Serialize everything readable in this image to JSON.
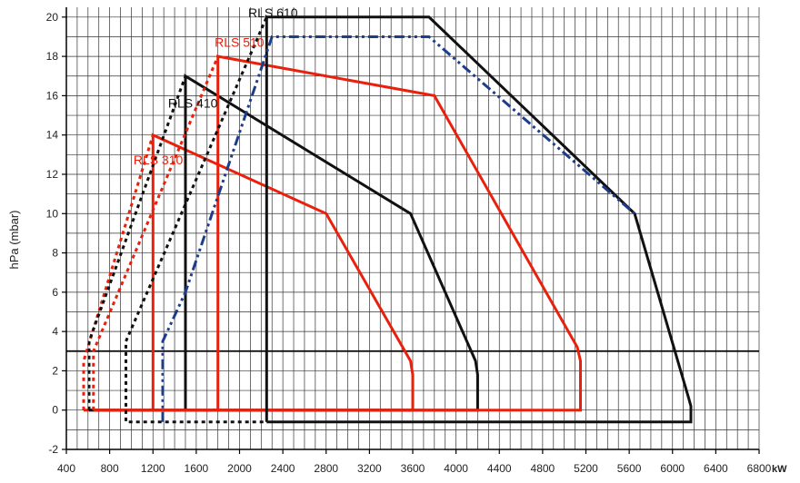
{
  "chart_data": {
    "type": "line",
    "title": "",
    "xlabel": "",
    "x_unit": "kW",
    "ylabel": "hPa (mbar)",
    "xlim": [
      400,
      6800
    ],
    "ylim": [
      -2,
      20.5
    ],
    "x_ticks": [
      400,
      800,
      1200,
      1600,
      2000,
      2400,
      2800,
      3200,
      3600,
      4000,
      4400,
      4800,
      5200,
      5600,
      6000,
      6400,
      6800
    ],
    "x_tick_labels": [
      "400",
      "800",
      "1200",
      "1600",
      "2000",
      "2400",
      "2800",
      "3200",
      "3600",
      "4000",
      "4400",
      "4800",
      "5200",
      "5600",
      "6000",
      "6400",
      "6800"
    ],
    "y_ticks": [
      -2,
      0,
      2,
      4,
      6,
      8,
      10,
      12,
      14,
      16,
      18,
      20
    ],
    "y_tick_labels": [
      "-2",
      "0",
      "2",
      "4",
      "6",
      "8",
      "10",
      "12",
      "14",
      "16",
      "18",
      "20"
    ],
    "grid": true,
    "major_grid_y": [
      3
    ],
    "colors": {
      "red": "#e8200c",
      "black": "#111111",
      "blue": "#1c3c8c",
      "grid": "#333333",
      "background": "#ffffff"
    },
    "series": [
      {
        "name": "RLS 310",
        "color": "#e8200c",
        "dash": "solid",
        "width": 3,
        "points": [
          [
            1200,
            0
          ],
          [
            1200,
            14
          ],
          [
            2800,
            10
          ],
          [
            3580,
            2.5
          ],
          [
            3600,
            1.8
          ],
          [
            3600,
            0
          ],
          [
            560,
            0
          ]
        ]
      },
      {
        "name": "",
        "color": "#e8200c",
        "dash": "dotted",
        "width": 3,
        "points": [
          [
            560,
            0
          ],
          [
            560,
            2.5
          ],
          [
            1200,
            14
          ]
        ]
      },
      {
        "name": "RLS 410",
        "color": "#111111",
        "dash": "solid",
        "width": 3,
        "points": [
          [
            1500,
            0
          ],
          [
            1500,
            17
          ],
          [
            3580,
            10
          ],
          [
            4180,
            2.5
          ],
          [
            4200,
            1.8
          ],
          [
            4200,
            0
          ],
          [
            610,
            0
          ]
        ]
      },
      {
        "name": "",
        "color": "#111111",
        "dash": "dotted",
        "width": 3,
        "points": [
          [
            610,
            0
          ],
          [
            610,
            3.5
          ],
          [
            1500,
            17
          ]
        ]
      },
      {
        "name": "RLS 510",
        "color": "#e8200c",
        "dash": "solid",
        "width": 3,
        "points": [
          [
            1800,
            0
          ],
          [
            1800,
            18
          ],
          [
            3800,
            16
          ],
          [
            5120,
            3.2
          ],
          [
            5150,
            2.5
          ],
          [
            5150,
            0
          ],
          [
            650,
            0
          ]
        ]
      },
      {
        "name": "",
        "color": "#e8200c",
        "dash": "dotted",
        "width": 3,
        "points": [
          [
            650,
            0
          ],
          [
            650,
            3
          ],
          [
            1800,
            18
          ]
        ]
      },
      {
        "name": "RLS 610",
        "color": "#111111",
        "dash": "solid",
        "width": 3,
        "points": [
          [
            2250,
            -0.6
          ],
          [
            2250,
            20
          ],
          [
            3750,
            20
          ],
          [
            5650,
            10
          ],
          [
            6150,
            0.6
          ],
          [
            6170,
            0.2
          ],
          [
            6170,
            -0.6
          ],
          [
            2250,
            -0.6
          ]
        ]
      },
      {
        "name": "",
        "color": "#111111",
        "dash": "dotted",
        "width": 3,
        "points": [
          [
            2220,
            -0.6
          ],
          [
            950,
            -0.6
          ],
          [
            950,
            3.5
          ],
          [
            2250,
            20
          ]
        ]
      },
      {
        "name": "",
        "color": "#1c3c8c",
        "dash": "dashdot",
        "width": 3,
        "points": [
          [
            1290,
            -0.6
          ],
          [
            1290,
            3.5
          ],
          [
            1500,
            6
          ],
          [
            2300,
            19
          ],
          [
            3750,
            19
          ],
          [
            5650,
            10
          ]
        ]
      }
    ],
    "labels": [
      {
        "text": "RLS 310",
        "x": 1020,
        "y": 12.5,
        "color": "#e8200c"
      },
      {
        "text": "RLS 410",
        "x": 1340,
        "y": 15.4,
        "color": "#111111"
      },
      {
        "text": "RLS 510",
        "x": 1770,
        "y": 18.5,
        "color": "#e8200c"
      },
      {
        "text": "RLS 610",
        "x": 2080,
        "y": 20.0,
        "color": "#111111"
      }
    ]
  }
}
